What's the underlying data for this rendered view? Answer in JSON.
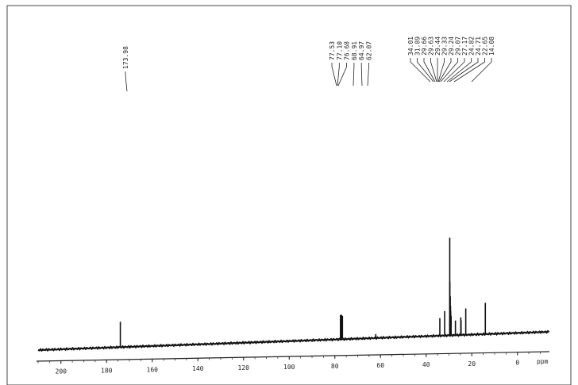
{
  "chart_data": {
    "type": "line",
    "title": "",
    "xlabel": "ppm",
    "ylabel": "",
    "x_reversed": true,
    "xlim": [
      210,
      -14
    ],
    "ticks": [
      200,
      180,
      160,
      140,
      120,
      100,
      80,
      60,
      40,
      20,
      0
    ],
    "tick_labels": [
      "200",
      "180",
      "160",
      "140",
      "120",
      "100",
      "80",
      "60",
      "40",
      "20",
      "0"
    ],
    "peak_labels": {
      "group1": [
        "173.98"
      ],
      "group2": [
        "77.53",
        "77.10",
        "76.68",
        "68.91",
        "64.97",
        "62.07"
      ],
      "group3": [
        "34.01",
        "31.89",
        "29.66",
        "29.63",
        "29.44",
        "29.33",
        "29.24",
        "29.07",
        "27.17",
        "24.82",
        "24.71",
        "22.65",
        "14.08"
      ]
    },
    "series": [
      {
        "peaks": [
          {
            "x": 173.98,
            "h": 0.26
          },
          {
            "x": 77.53,
            "h": 0.25
          },
          {
            "x": 77.1,
            "h": 0.25
          },
          {
            "x": 76.68,
            "h": 0.24
          },
          {
            "x": 68.91,
            "h": 0.01
          },
          {
            "x": 64.97,
            "h": 0.01
          },
          {
            "x": 62.07,
            "h": 0.04
          },
          {
            "x": 34.01,
            "h": 0.18
          },
          {
            "x": 31.89,
            "h": 0.25
          },
          {
            "x": 29.66,
            "h": 1.0
          },
          {
            "x": 29.63,
            "h": 0.55
          },
          {
            "x": 29.44,
            "h": 0.4
          },
          {
            "x": 29.33,
            "h": 0.3
          },
          {
            "x": 29.24,
            "h": 0.25
          },
          {
            "x": 29.07,
            "h": 0.2
          },
          {
            "x": 27.17,
            "h": 0.15
          },
          {
            "x": 24.82,
            "h": 0.18
          },
          {
            "x": 24.71,
            "h": 0.15
          },
          {
            "x": 22.65,
            "h": 0.27
          },
          {
            "x": 14.08,
            "h": 0.32
          }
        ]
      }
    ]
  }
}
